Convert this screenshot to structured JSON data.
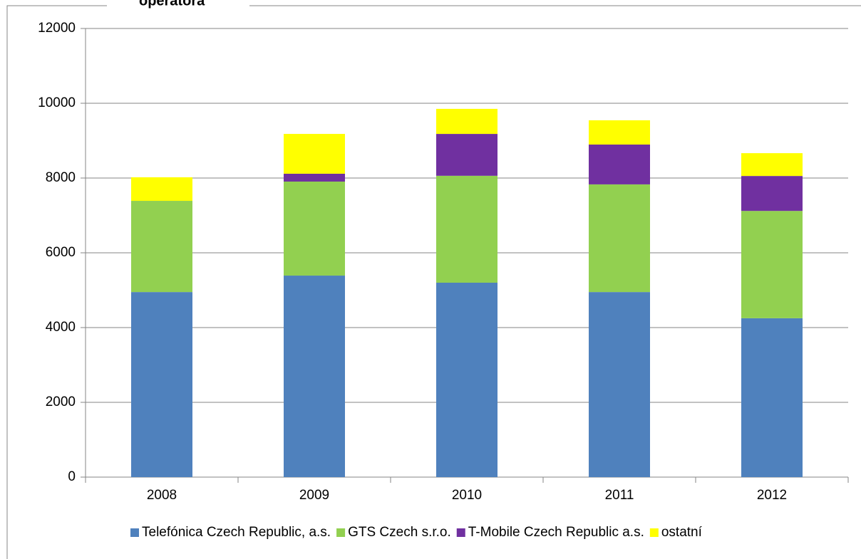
{
  "chart_data": {
    "type": "bar",
    "stacked": true,
    "title": "operátora",
    "categories": [
      "2008",
      "2009",
      "2010",
      "2011",
      "2012"
    ],
    "series": [
      {
        "name": "Telefónica Czech Republic, a.s.",
        "color": "#4f81bd",
        "values": [
          4950,
          5390,
          5200,
          4950,
          4250
        ]
      },
      {
        "name": "GTS Czech s.r.o.",
        "color": "#92d050",
        "values": [
          2440,
          2515,
          2860,
          2880,
          2870
        ]
      },
      {
        "name": "T-Mobile Czech Republic a.s.",
        "color": "#7030a0",
        "values": [
          0,
          210,
          1120,
          1065,
          935
        ]
      },
      {
        "name": "ostatní",
        "color": "#ffff00",
        "values": [
          630,
          1065,
          670,
          650,
          610
        ]
      }
    ],
    "ylim": [
      0,
      12000
    ],
    "yticks": [
      0,
      2000,
      4000,
      6000,
      8000,
      10000,
      12000
    ],
    "grid": true,
    "legend": "bottom"
  }
}
